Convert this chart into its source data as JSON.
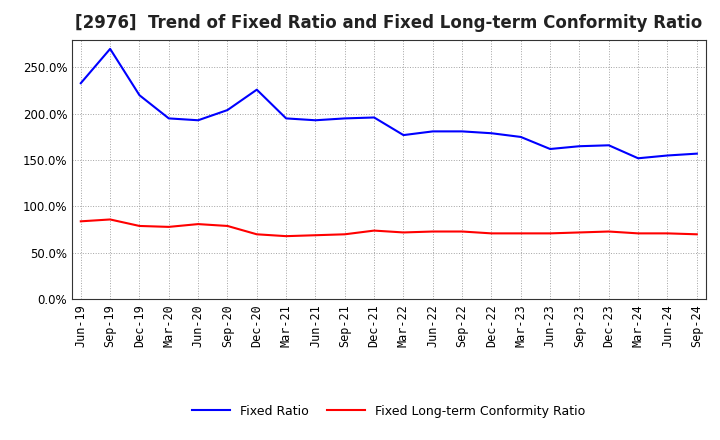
{
  "title": "[2976]  Trend of Fixed Ratio and Fixed Long-term Conformity Ratio",
  "x_labels": [
    "Jun-19",
    "Sep-19",
    "Dec-19",
    "Mar-20",
    "Jun-20",
    "Sep-20",
    "Dec-20",
    "Mar-21",
    "Jun-21",
    "Sep-21",
    "Dec-21",
    "Mar-22",
    "Jun-22",
    "Sep-22",
    "Dec-22",
    "Mar-23",
    "Jun-23",
    "Sep-23",
    "Dec-23",
    "Mar-24",
    "Jun-24",
    "Sep-24"
  ],
  "fixed_ratio": [
    233,
    270,
    220,
    195,
    193,
    204,
    226,
    195,
    193,
    195,
    196,
    177,
    181,
    181,
    179,
    175,
    162,
    165,
    166,
    152,
    155,
    157
  ],
  "fixed_lt_ratio": [
    84,
    86,
    79,
    78,
    81,
    79,
    70,
    68,
    69,
    70,
    74,
    72,
    73,
    73,
    71,
    71,
    71,
    72,
    73,
    71,
    71,
    70
  ],
  "fixed_ratio_color": "#0000FF",
  "fixed_lt_ratio_color": "#FF0000",
  "ylim": [
    0,
    280
  ],
  "yticks": [
    0,
    50,
    100,
    150,
    200,
    250
  ],
  "background_color": "#FFFFFF",
  "plot_bg_color": "#FFFFFF",
  "grid_color": "#999999",
  "legend_fixed": "Fixed Ratio",
  "legend_fixed_lt": "Fixed Long-term Conformity Ratio",
  "title_fontsize": 12,
  "tick_fontsize": 8.5,
  "linewidth": 1.5
}
